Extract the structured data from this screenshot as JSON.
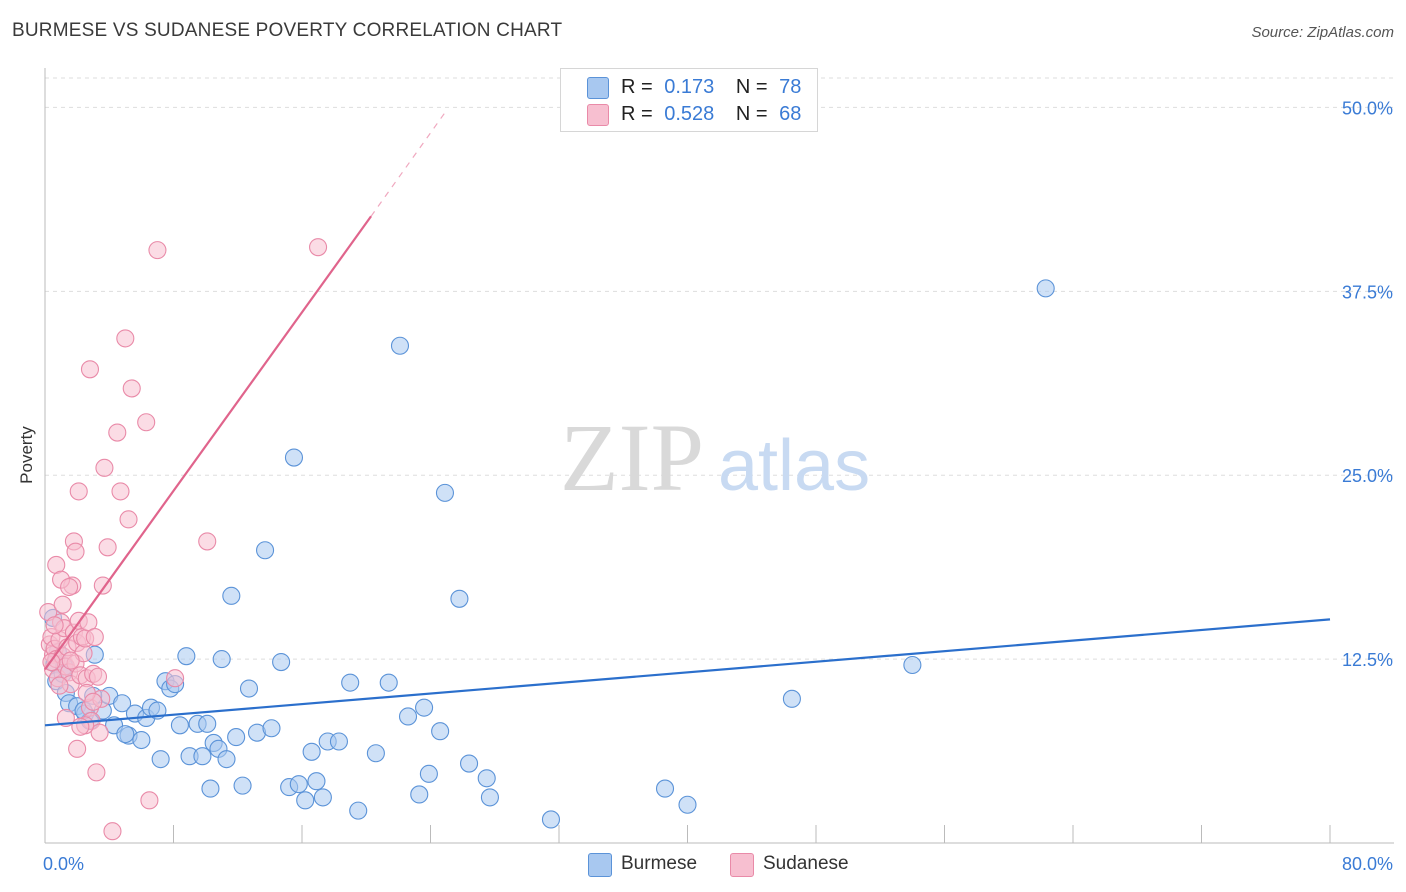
{
  "title": "BURMESE VS SUDANESE POVERTY CORRELATION CHART",
  "source": "Source: ZipAtlas.com",
  "watermark": {
    "zip": "ZIP",
    "atlas": "atlas"
  },
  "legend": {
    "rows": [
      {
        "r_label": "R =",
        "r_value": "0.173",
        "n_label": "N =",
        "n_value": "78"
      },
      {
        "r_label": "R =",
        "r_value": "0.528",
        "n_label": "N =",
        "n_value": "68"
      }
    ]
  },
  "bottom_legend": {
    "burmese": "Burmese",
    "sudanese": "Sudanese"
  },
  "colors": {
    "burmese_fill": "#a8c8f0",
    "burmese_stroke": "#5b93d8",
    "burmese_line": "#2b6fcc",
    "sudanese_fill": "#f7bfd0",
    "sudanese_stroke": "#e98aa8",
    "sudanese_line": "#e0648c",
    "tick_text": "#3a7bd5",
    "grid": "#dddddd"
  },
  "chart_data": {
    "type": "scatter",
    "title": "BURMESE VS SUDANESE POVERTY CORRELATION CHART",
    "xlabel": "",
    "ylabel": "Poverty",
    "xlim": [
      0,
      80
    ],
    "ylim": [
      0,
      52
    ],
    "x_tick_labels": [
      {
        "value": 0,
        "label": "0.0%"
      },
      {
        "value": 80,
        "label": "80.0%"
      }
    ],
    "y_tick_labels": [
      {
        "value": 12.5,
        "label": "12.5%"
      },
      {
        "value": 25,
        "label": "25.0%"
      },
      {
        "value": 37.5,
        "label": "37.5%"
      },
      {
        "value": 50,
        "label": "50.0%"
      }
    ],
    "series": [
      {
        "name": "Burmese",
        "r": 0.173,
        "n": 78,
        "trend": {
          "x": [
            0,
            80
          ],
          "y": [
            8.0,
            15.2
          ]
        },
        "points": [
          [
            0.5,
            15.3
          ],
          [
            0.8,
            13.0
          ],
          [
            0.6,
            12.2
          ],
          [
            1.2,
            12.0
          ],
          [
            0.7,
            11.0
          ],
          [
            1.1,
            11.5
          ],
          [
            1.3,
            10.2
          ],
          [
            1.5,
            9.5
          ],
          [
            2.0,
            9.3
          ],
          [
            2.5,
            8.8
          ],
          [
            2.8,
            8.3
          ],
          [
            3.1,
            12.8
          ],
          [
            3.6,
            9.0
          ],
          [
            4.0,
            10.0
          ],
          [
            4.3,
            8.0
          ],
          [
            4.8,
            9.5
          ],
          [
            5.2,
            7.3
          ],
          [
            5.6,
            8.8
          ],
          [
            6.0,
            7.0
          ],
          [
            6.3,
            8.5
          ],
          [
            6.6,
            9.2
          ],
          [
            7.0,
            9.0
          ],
          [
            7.2,
            5.7
          ],
          [
            7.5,
            11.0
          ],
          [
            7.8,
            10.5
          ],
          [
            8.1,
            10.8
          ],
          [
            8.4,
            8.0
          ],
          [
            8.8,
            12.7
          ],
          [
            9.0,
            5.9
          ],
          [
            9.5,
            8.1
          ],
          [
            9.8,
            5.9
          ],
          [
            10.1,
            8.1
          ],
          [
            10.3,
            3.7
          ],
          [
            10.5,
            6.8
          ],
          [
            10.8,
            6.4
          ],
          [
            11.0,
            12.5
          ],
          [
            11.3,
            5.7
          ],
          [
            11.6,
            16.8
          ],
          [
            11.9,
            7.2
          ],
          [
            12.3,
            3.9
          ],
          [
            12.7,
            10.5
          ],
          [
            13.2,
            7.5
          ],
          [
            13.7,
            19.9
          ],
          [
            14.1,
            7.8
          ],
          [
            14.7,
            12.3
          ],
          [
            15.2,
            3.8
          ],
          [
            15.5,
            26.2
          ],
          [
            15.8,
            4.0
          ],
          [
            16.2,
            2.9
          ],
          [
            16.6,
            6.2
          ],
          [
            16.9,
            4.2
          ],
          [
            17.3,
            3.1
          ],
          [
            17.6,
            6.9
          ],
          [
            18.3,
            6.9
          ],
          [
            19.0,
            10.9
          ],
          [
            19.5,
            2.2
          ],
          [
            20.6,
            6.1
          ],
          [
            21.4,
            10.9
          ],
          [
            22.1,
            33.8
          ],
          [
            22.6,
            8.6
          ],
          [
            23.3,
            3.3
          ],
          [
            23.6,
            9.2
          ],
          [
            23.9,
            4.7
          ],
          [
            24.6,
            7.6
          ],
          [
            24.9,
            23.8
          ],
          [
            25.8,
            16.6
          ],
          [
            26.4,
            5.4
          ],
          [
            27.5,
            4.4
          ],
          [
            27.7,
            3.1
          ],
          [
            31.5,
            1.6
          ],
          [
            38.6,
            3.7
          ],
          [
            40.0,
            2.6
          ],
          [
            46.5,
            9.8
          ],
          [
            54.0,
            12.1
          ],
          [
            62.3,
            37.7
          ],
          [
            3.0,
            10.0
          ],
          [
            5.0,
            7.4
          ],
          [
            2.4,
            9.0
          ]
        ]
      },
      {
        "name": "Sudanese",
        "r": 0.528,
        "n": 68,
        "trend": {
          "x": [
            0,
            20.3
          ],
          "y": [
            11.8,
            42.6
          ]
        },
        "trend_dashed": {
          "x": [
            20.3,
            25.0
          ],
          "y": [
            42.6,
            49.8
          ]
        },
        "points": [
          [
            0.2,
            15.7
          ],
          [
            0.3,
            13.5
          ],
          [
            0.4,
            14.0
          ],
          [
            0.5,
            12.8
          ],
          [
            0.5,
            11.8
          ],
          [
            0.6,
            13.2
          ],
          [
            0.7,
            12.5
          ],
          [
            0.8,
            11.2
          ],
          [
            0.9,
            13.8
          ],
          [
            1.0,
            15.0
          ],
          [
            1.1,
            12.7
          ],
          [
            1.2,
            14.6
          ],
          [
            1.3,
            12.0
          ],
          [
            1.4,
            13.3
          ],
          [
            1.5,
            11.6
          ],
          [
            1.6,
            10.8
          ],
          [
            1.7,
            17.5
          ],
          [
            1.8,
            14.3
          ],
          [
            1.9,
            12.2
          ],
          [
            2.0,
            13.6
          ],
          [
            2.1,
            15.1
          ],
          [
            2.2,
            11.4
          ],
          [
            2.3,
            14.0
          ],
          [
            2.4,
            12.9
          ],
          [
            2.5,
            13.9
          ],
          [
            2.6,
            11.2
          ],
          [
            2.7,
            15.0
          ],
          [
            2.8,
            9.2
          ],
          [
            2.9,
            8.3
          ],
          [
            3.0,
            11.5
          ],
          [
            3.1,
            14.0
          ],
          [
            3.2,
            4.8
          ],
          [
            3.3,
            11.3
          ],
          [
            3.4,
            7.5
          ],
          [
            3.5,
            9.8
          ],
          [
            0.7,
            18.9
          ],
          [
            1.0,
            17.9
          ],
          [
            1.5,
            17.4
          ],
          [
            1.8,
            20.5
          ],
          [
            1.9,
            19.8
          ],
          [
            2.0,
            6.4
          ],
          [
            2.1,
            23.9
          ],
          [
            2.8,
            32.2
          ],
          [
            3.6,
            17.5
          ],
          [
            3.7,
            25.5
          ],
          [
            3.9,
            20.1
          ],
          [
            4.2,
            0.8
          ],
          [
            4.5,
            27.9
          ],
          [
            4.7,
            23.9
          ],
          [
            5.0,
            34.3
          ],
          [
            5.2,
            22.0
          ],
          [
            5.4,
            30.9
          ],
          [
            6.3,
            28.6
          ],
          [
            6.5,
            2.9
          ],
          [
            7.0,
            40.3
          ],
          [
            8.1,
            11.2
          ],
          [
            10.1,
            20.5
          ],
          [
            17.0,
            40.5
          ],
          [
            1.3,
            8.5
          ],
          [
            2.5,
            8.0
          ],
          [
            0.9,
            10.7
          ],
          [
            1.6,
            12.4
          ],
          [
            2.2,
            7.9
          ],
          [
            0.4,
            12.3
          ],
          [
            1.1,
            16.2
          ],
          [
            2.6,
            10.2
          ],
          [
            3.0,
            9.6
          ],
          [
            0.6,
            14.8
          ]
        ]
      }
    ]
  }
}
